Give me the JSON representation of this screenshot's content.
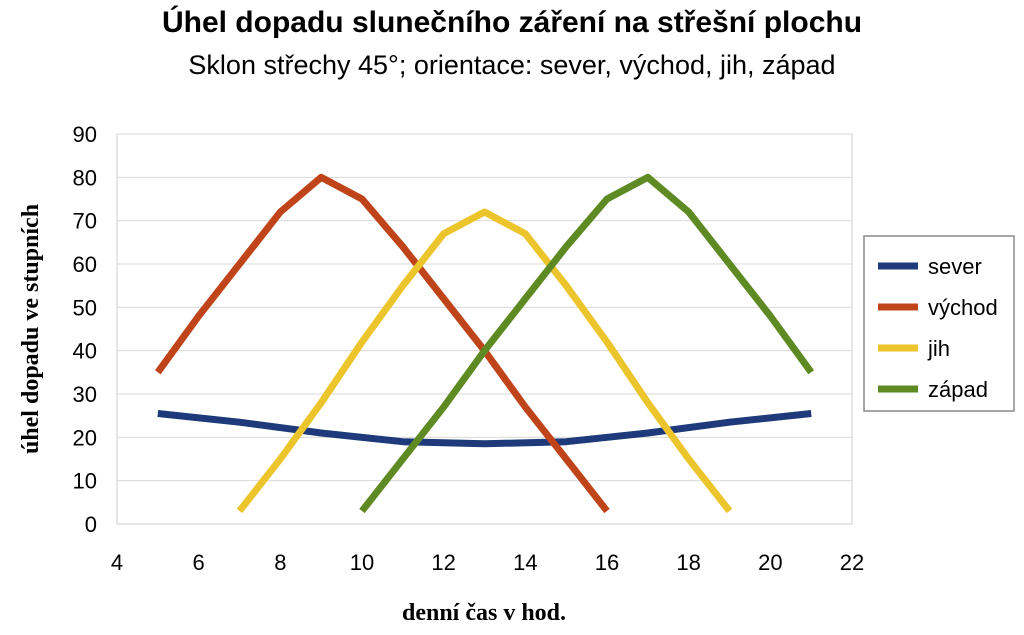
{
  "chart_data": {
    "type": "line",
    "title": "Úhel dopadu slunečního záření na střešní plochu",
    "subtitle": "Sklon střechy 45°; orientace: sever, východ, jih, západ",
    "xlabel": "denní čas v hod.",
    "ylabel": "úhel dopadu ve stupních",
    "xlim": [
      4,
      22
    ],
    "ylim": [
      0,
      90
    ],
    "xticks": [
      4,
      6,
      8,
      10,
      12,
      14,
      16,
      18,
      20,
      22
    ],
    "yticks": [
      0,
      10,
      20,
      30,
      40,
      50,
      60,
      70,
      80,
      90
    ],
    "grid": true,
    "legend_position": "right",
    "series": [
      {
        "name": "sever",
        "color": "#1f3a7a",
        "points": [
          [
            5,
            25.5
          ],
          [
            7,
            23.5
          ],
          [
            9,
            21
          ],
          [
            11,
            19
          ],
          [
            13,
            18.5
          ],
          [
            15,
            19
          ],
          [
            17,
            21
          ],
          [
            19,
            23.5
          ],
          [
            21,
            25.5
          ]
        ]
      },
      {
        "name": "východ",
        "color": "#c0441a",
        "points": [
          [
            5,
            35
          ],
          [
            6,
            48
          ],
          [
            7,
            60
          ],
          [
            8,
            72
          ],
          [
            9,
            80
          ],
          [
            10,
            75
          ],
          [
            11,
            64
          ],
          [
            12,
            52
          ],
          [
            13,
            40
          ],
          [
            14,
            27
          ],
          [
            15,
            15
          ],
          [
            16,
            3
          ]
        ]
      },
      {
        "name": "jih",
        "color": "#ecc52c",
        "points": [
          [
            7,
            3
          ],
          [
            8,
            15
          ],
          [
            9,
            28
          ],
          [
            10,
            42
          ],
          [
            11,
            55
          ],
          [
            12,
            67
          ],
          [
            13,
            72
          ],
          [
            14,
            67
          ],
          [
            15,
            55
          ],
          [
            16,
            42
          ],
          [
            17,
            28
          ],
          [
            18,
            15
          ],
          [
            19,
            3
          ]
        ]
      },
      {
        "name": "západ",
        "color": "#5e8a24",
        "points": [
          [
            10,
            3
          ],
          [
            11,
            15
          ],
          [
            12,
            27
          ],
          [
            13,
            40
          ],
          [
            14,
            52
          ],
          [
            15,
            64
          ],
          [
            16,
            75
          ],
          [
            17,
            80
          ],
          [
            18,
            72
          ],
          [
            19,
            60
          ],
          [
            20,
            48
          ],
          [
            21,
            35
          ]
        ]
      }
    ]
  }
}
